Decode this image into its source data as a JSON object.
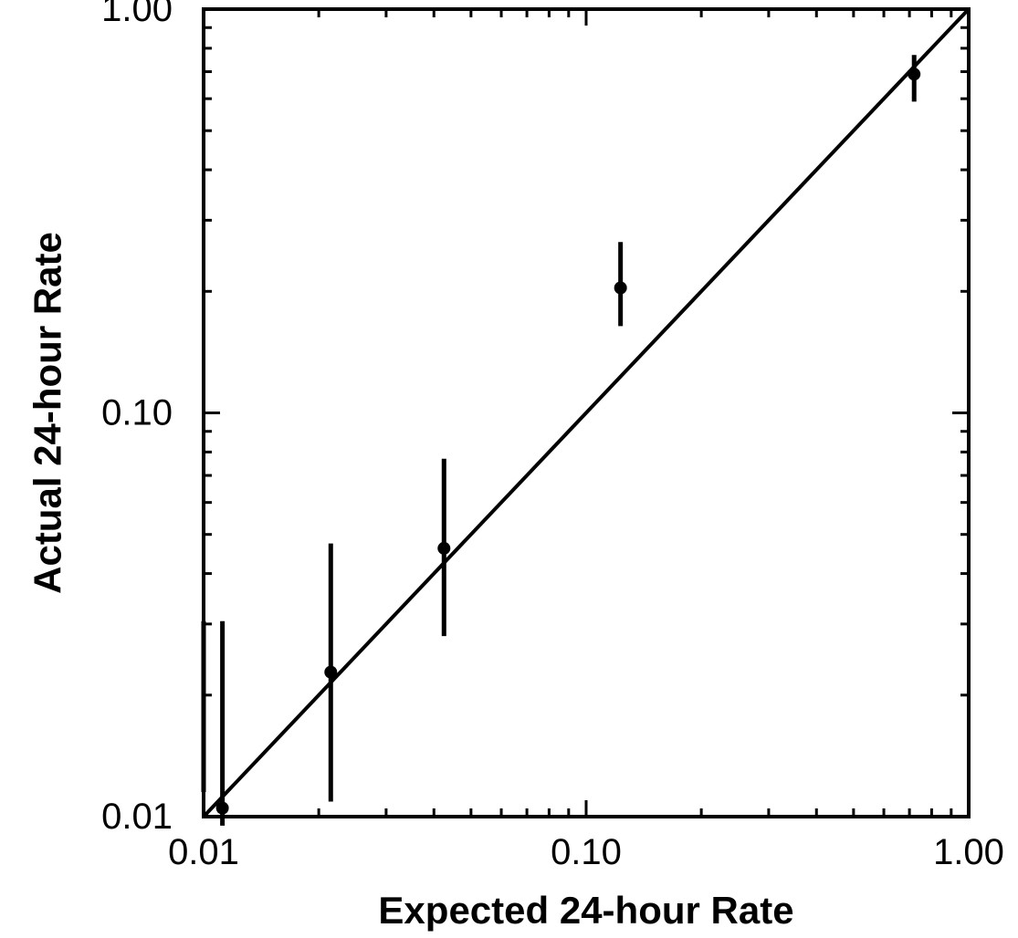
{
  "chart_data": {
    "type": "scatter",
    "title": "",
    "xlabel": "Expected 24-hour Rate",
    "ylabel": "Actual 24-hour Rate",
    "x_scale": "log",
    "y_scale": "log",
    "xlim": [
      0.01,
      1.0
    ],
    "ylim": [
      0.01,
      1.0
    ],
    "x_ticks": [
      {
        "value": 0.01,
        "label": "0.01"
      },
      {
        "value": 0.1,
        "label": "0.10"
      },
      {
        "value": 1.0,
        "label": "1.00"
      }
    ],
    "y_ticks": [
      {
        "value": 0.01,
        "label": "0.01"
      },
      {
        "value": 0.1,
        "label": "0.10"
      },
      {
        "value": 1.0,
        "label": "1.00"
      }
    ],
    "grid": false,
    "legend": "none",
    "reference_line": {
      "type": "identity",
      "from": [
        0.01,
        0.01
      ],
      "to": [
        1.0,
        1.0
      ]
    },
    "series": [
      {
        "points": [
          {
            "x": 0.0112,
            "y": 0.0105,
            "y_low": 0.0095,
            "y_high": 0.0305
          },
          {
            "x": 0.0215,
            "y": 0.0228,
            "y_low": 0.0109,
            "y_high": 0.0475
          },
          {
            "x": 0.0425,
            "y": 0.0462,
            "y_low": 0.028,
            "y_high": 0.077
          },
          {
            "x": 0.123,
            "y": 0.204,
            "y_low": 0.164,
            "y_high": 0.265
          },
          {
            "x": 0.72,
            "y": 0.69,
            "y_low": 0.59,
            "y_high": 0.77
          }
        ]
      }
    ],
    "extra_error_bars": [
      {
        "x": 0.01,
        "y_low": 0.0115,
        "y_high": 0.0305
      }
    ]
  }
}
